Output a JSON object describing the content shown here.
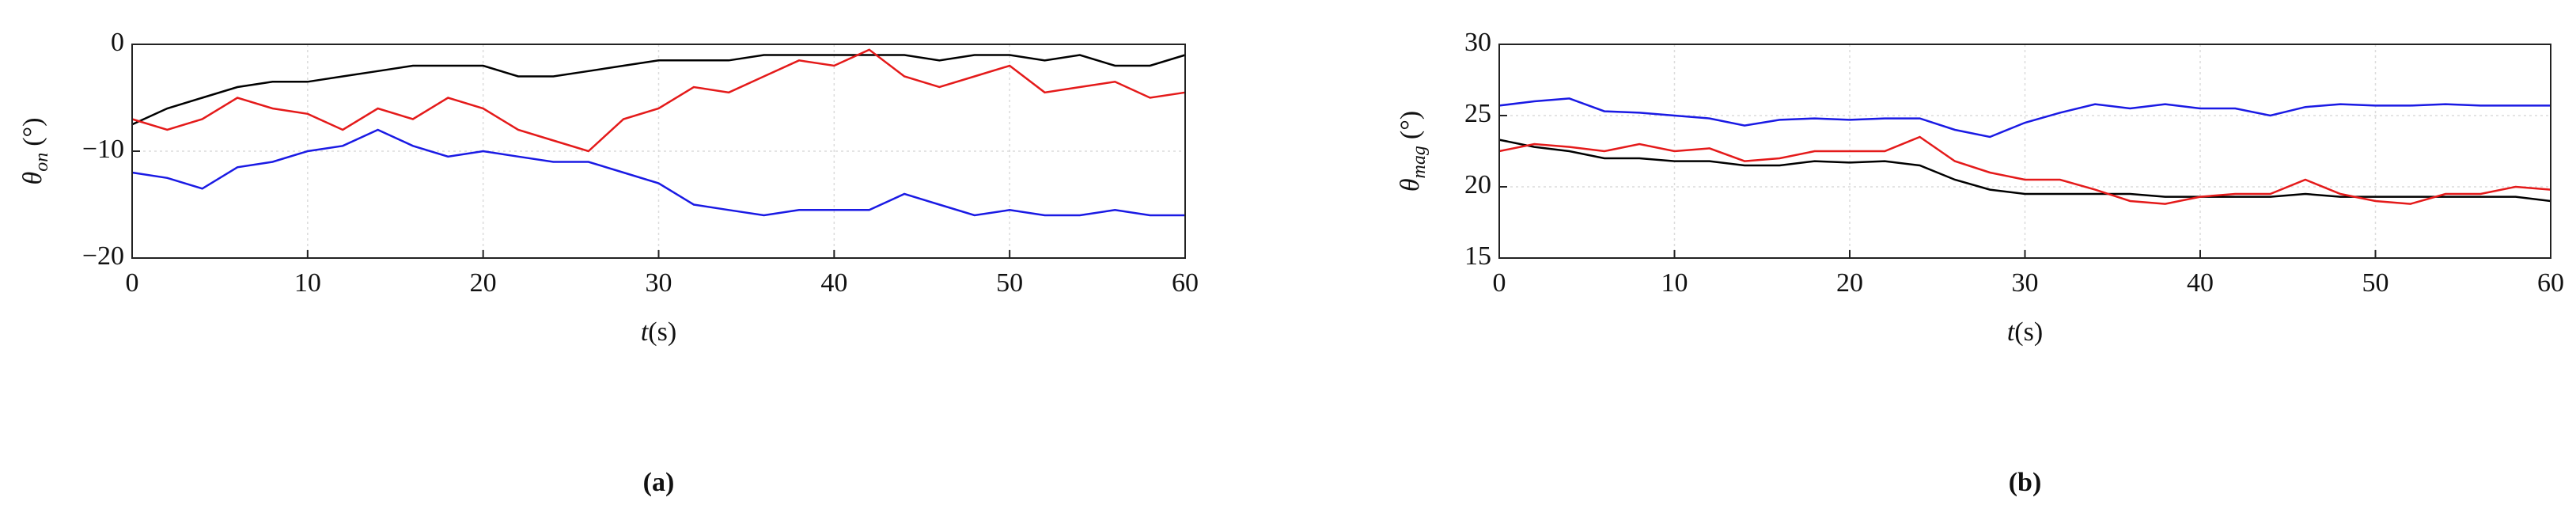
{
  "chart_data": [
    {
      "type": "line",
      "panel_label": "(a)",
      "xlabel": "t",
      "xlabel_unit": "(s)",
      "ylabel": "θ",
      "ylabel_subscript": "on",
      "ylabel_unit": "(°)",
      "xlim": [
        0,
        60
      ],
      "xticks": [
        0,
        10,
        20,
        30,
        40,
        50,
        60
      ],
      "ylim": [
        -20,
        0
      ],
      "yticks": [
        {
          "value": -20,
          "label": "−20"
        },
        {
          "value": -10,
          "label": "−10"
        },
        0
      ],
      "grid": true,
      "x": [
        0,
        2,
        4,
        6,
        8,
        10,
        12,
        14,
        16,
        18,
        20,
        22,
        24,
        26,
        28,
        30,
        32,
        34,
        36,
        38,
        40,
        42,
        44,
        46,
        48,
        50,
        52,
        54,
        56,
        58,
        60
      ],
      "series": [
        {
          "color": "#000000",
          "values": [
            -7.5,
            -6,
            -5,
            -4,
            -3.5,
            -3.5,
            -3,
            -2.5,
            -2,
            -2,
            -2,
            -3,
            -3,
            -2.5,
            -2,
            -1.5,
            -1.5,
            -1.5,
            -1,
            -1,
            -1,
            -1,
            -1,
            -1.5,
            -1,
            -1,
            -1.5,
            -1,
            -2,
            -2,
            -1
          ]
        },
        {
          "color": "#e41a1a",
          "values": [
            -7,
            -8,
            -7,
            -5,
            -6,
            -6.5,
            -8,
            -6,
            -7,
            -5,
            -6,
            -8,
            -9,
            -10,
            -7,
            -6,
            -4,
            -4.5,
            -3,
            -1.5,
            -2,
            -0.5,
            -3,
            -4,
            -3,
            -2,
            -4.5,
            -4,
            -3.5,
            -5,
            -4.5
          ]
        },
        {
          "color": "#1a1ae4",
          "values": [
            -12,
            -12.5,
            -13.5,
            -11.5,
            -11,
            -10,
            -9.5,
            -8,
            -9.5,
            -10.5,
            -10,
            -10.5,
            -11,
            -11,
            -12,
            -13,
            -15,
            -15.5,
            -16,
            -15.5,
            -15.5,
            -15.5,
            -14,
            -15,
            -16,
            -15.5,
            -16,
            -16,
            -15.5,
            -16,
            -16
          ]
        }
      ]
    },
    {
      "type": "line",
      "panel_label": "(b)",
      "xlabel": "t",
      "xlabel_unit": "(s)",
      "ylabel": "θ",
      "ylabel_subscript": "mag",
      "ylabel_unit": "(°)",
      "xlim": [
        0,
        60
      ],
      "xticks": [
        0,
        10,
        20,
        30,
        40,
        50,
        60
      ],
      "ylim": [
        15,
        30
      ],
      "yticks": [
        15,
        20,
        25,
        30
      ],
      "grid": true,
      "x": [
        0,
        2,
        4,
        6,
        8,
        10,
        12,
        14,
        16,
        18,
        20,
        22,
        24,
        26,
        28,
        30,
        32,
        34,
        36,
        38,
        40,
        42,
        44,
        46,
        48,
        50,
        52,
        54,
        56,
        58,
        60
      ],
      "series": [
        {
          "color": "#1a1ae4",
          "values": [
            25.7,
            26,
            26.2,
            25.3,
            25.2,
            25,
            24.8,
            24.3,
            24.7,
            24.8,
            24.7,
            24.8,
            24.8,
            24,
            23.5,
            24.5,
            25.2,
            25.8,
            25.5,
            25.8,
            25.5,
            25.5,
            25,
            25.6,
            25.8,
            25.7,
            25.7,
            25.8,
            25.7,
            25.7,
            25.7
          ]
        },
        {
          "color": "#000000",
          "values": [
            23.3,
            22.8,
            22.5,
            22,
            22,
            21.8,
            21.8,
            21.5,
            21.5,
            21.8,
            21.7,
            21.8,
            21.5,
            20.5,
            19.8,
            19.5,
            19.5,
            19.5,
            19.5,
            19.3,
            19.3,
            19.3,
            19.3,
            19.5,
            19.3,
            19.3,
            19.3,
            19.3,
            19.3,
            19.3,
            19
          ]
        },
        {
          "color": "#e41a1a",
          "values": [
            22.5,
            23,
            22.8,
            22.5,
            23,
            22.5,
            22.7,
            21.8,
            22,
            22.5,
            22.5,
            22.5,
            23.5,
            21.8,
            21,
            20.5,
            20.5,
            19.8,
            19,
            18.8,
            19.3,
            19.5,
            19.5,
            20.5,
            19.5,
            19,
            18.8,
            19.5,
            19.5,
            20,
            19.8
          ]
        }
      ]
    }
  ]
}
